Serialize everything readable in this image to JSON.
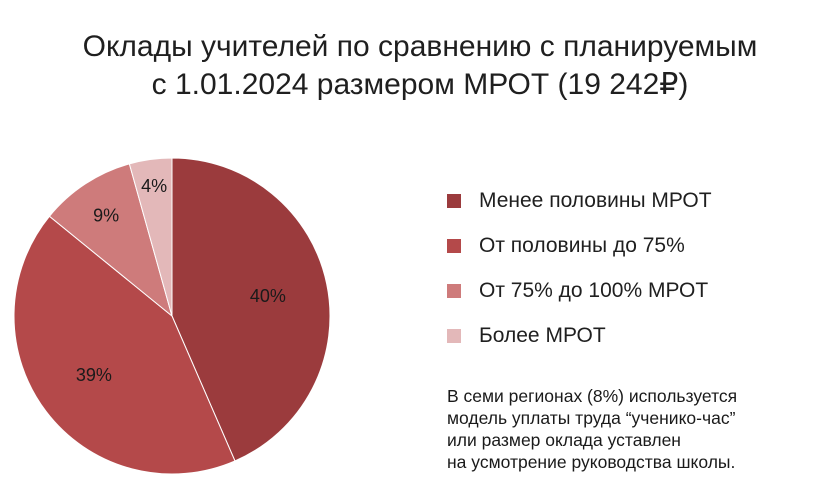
{
  "chart_data": {
    "type": "pie",
    "title_lines": [
      "Оклады учителей по сравнению с планируемым",
      "с 1.01.2024 размером МРОТ (19 242₽)"
    ],
    "slices": [
      {
        "label": "Менее половины МРОТ",
        "value": 40,
        "value_label": "40%",
        "color": "#9b3b3d"
      },
      {
        "label": "От половины до 75%",
        "value": 39,
        "value_label": "39%",
        "color": "#b4494a"
      },
      {
        "label": "От 75% до 100% МРОТ",
        "value": 9,
        "value_label": "9%",
        "color": "#ce7b7b"
      },
      {
        "label": "Более МРОТ",
        "value": 4,
        "value_label": "4%",
        "color": "#e3b8b9"
      }
    ],
    "legend_position": "right"
  },
  "note_lines": [
    "В семи регионах (8%) используется",
    "модель уплаты труда “ученико-час”",
    "или размер оклада уставлен",
    "на усмотрение руководства школы."
  ]
}
